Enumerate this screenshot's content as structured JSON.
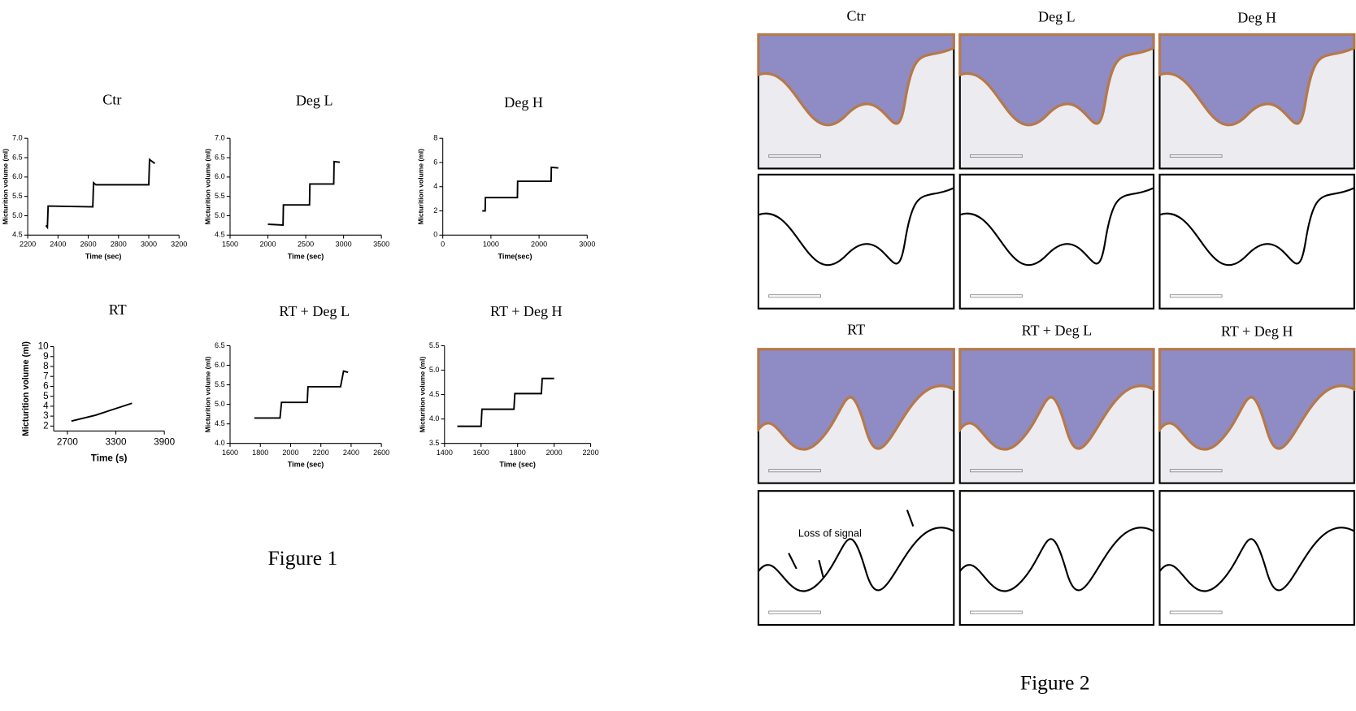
{
  "chart_data": [
    {
      "type": "line",
      "title": "Ctr",
      "xlabel": "Time (sec)",
      "ylabel": "Micturition volume (ml)",
      "x": [
        2320,
        2330,
        2335,
        2630,
        2635,
        2650,
        3000,
        3005,
        3040
      ],
      "values": [
        4.75,
        4.7,
        5.25,
        5.23,
        5.85,
        5.8,
        5.8,
        6.45,
        6.35
      ],
      "color": "#000000",
      "xlim": [
        2200,
        3200
      ],
      "xticks": [
        2200,
        2400,
        2600,
        2800,
        3000,
        3200
      ],
      "ylim": [
        4.5,
        7.0
      ],
      "yticks": [
        4.5,
        {
          "value": 5,
          "label": "5.0"
        },
        5.5,
        {
          "value": 6,
          "label": "6.0"
        },
        6.5,
        {
          "value": 7,
          "label": "7.0"
        }
      ]
    },
    {
      "type": "line",
      "title": "Deg L",
      "xlabel": "Time (sec)",
      "ylabel": "Micturition volume (ml)",
      "x": [
        2000,
        2200,
        2205,
        2550,
        2555,
        2870,
        2875,
        2950
      ],
      "values": [
        4.78,
        4.76,
        5.28,
        5.28,
        5.82,
        5.82,
        6.4,
        6.38
      ],
      "color": "#000000",
      "xlim": [
        1500,
        3500
      ],
      "xticks": [
        1500,
        2000,
        2500,
        3000,
        3500
      ],
      "ylim": [
        4.5,
        7.0
      ],
      "yticks": [
        4.5,
        {
          "value": 5,
          "label": "5.0"
        },
        5.5,
        {
          "value": 6,
          "label": "6.0"
        },
        6.5,
        {
          "value": 7,
          "label": "7.0"
        }
      ]
    },
    {
      "type": "line",
      "title": "Deg H",
      "xlabel": "Time(sec)",
      "ylabel": "Micturition volume (ml)",
      "x": [
        820,
        880,
        885,
        1550,
        1555,
        2250,
        2255,
        2400
      ],
      "values": [
        2.0,
        2.0,
        3.1,
        3.1,
        4.45,
        4.45,
        5.6,
        5.55
      ],
      "color": "#000000",
      "xlim": [
        0,
        3000
      ],
      "xticks": [
        0,
        1000,
        2000,
        3000
      ],
      "ylim": [
        0,
        8
      ],
      "yticks": [
        0,
        2,
        4,
        6,
        8
      ]
    },
    {
      "type": "line",
      "title": "RT",
      "xlabel": "Time (s)",
      "ylabel": "Micturition volume (ml)",
      "x": [
        2750,
        2900,
        3050,
        3200,
        3350,
        3500
      ],
      "values": [
        2.5,
        2.8,
        3.1,
        3.5,
        3.9,
        4.3
      ],
      "color": "#000000",
      "xlim": [
        2530,
        3900
      ],
      "xticks": [
        2700,
        3300,
        3900
      ],
      "ylim": [
        1.5,
        10
      ],
      "yticks": [
        2,
        3,
        4,
        5,
        6,
        7,
        8,
        9,
        10
      ]
    },
    {
      "type": "line",
      "title": "RT + Deg L",
      "xlabel": "Time (sec)",
      "ylabel": "Micturition volume (ml)",
      "x": [
        1760,
        1930,
        1940,
        2110,
        2115,
        2330,
        2350,
        2380
      ],
      "values": [
        4.65,
        4.65,
        5.05,
        5.05,
        5.45,
        5.45,
        5.85,
        5.82
      ],
      "color": "#000000",
      "xlim": [
        1600,
        2600
      ],
      "xticks": [
        1600,
        1800,
        2000,
        2200,
        2400,
        2600
      ],
      "ylim": [
        4.0,
        6.5
      ],
      "yticks": [
        {
          "value": 4,
          "label": "4.0"
        },
        4.5,
        {
          "value": 5,
          "label": "5.0"
        },
        5.5,
        {
          "value": 6,
          "label": "6.0"
        },
        6.5
      ]
    },
    {
      "type": "line",
      "title": "RT + Deg H",
      "xlabel": "Time (sec)",
      "ylabel": "Micturition volume (ml)",
      "x": [
        1470,
        1600,
        1605,
        1780,
        1785,
        1930,
        1935,
        2000
      ],
      "values": [
        3.85,
        3.85,
        4.2,
        4.2,
        4.52,
        4.52,
        4.83,
        4.83
      ],
      "color": "#000000",
      "xlim": [
        1400,
        2200
      ],
      "xticks": [
        1400,
        1600,
        1800,
        2000,
        2200
      ],
      "ylim": [
        3.5,
        5.5
      ],
      "yticks": [
        3.5,
        {
          "value": 4,
          "label": "4.0"
        },
        4.5,
        {
          "value": 5,
          "label": "5.0"
        },
        5.5
      ]
    }
  ],
  "figure1": {
    "caption": "Figure 1"
  },
  "figure2": {
    "panel_titles": [
      "Ctr",
      "Deg L",
      "Deg H",
      "RT",
      "RT + Deg L",
      "RT + Deg H"
    ],
    "annotation": "Loss of signal",
    "caption": "Figure 2"
  }
}
